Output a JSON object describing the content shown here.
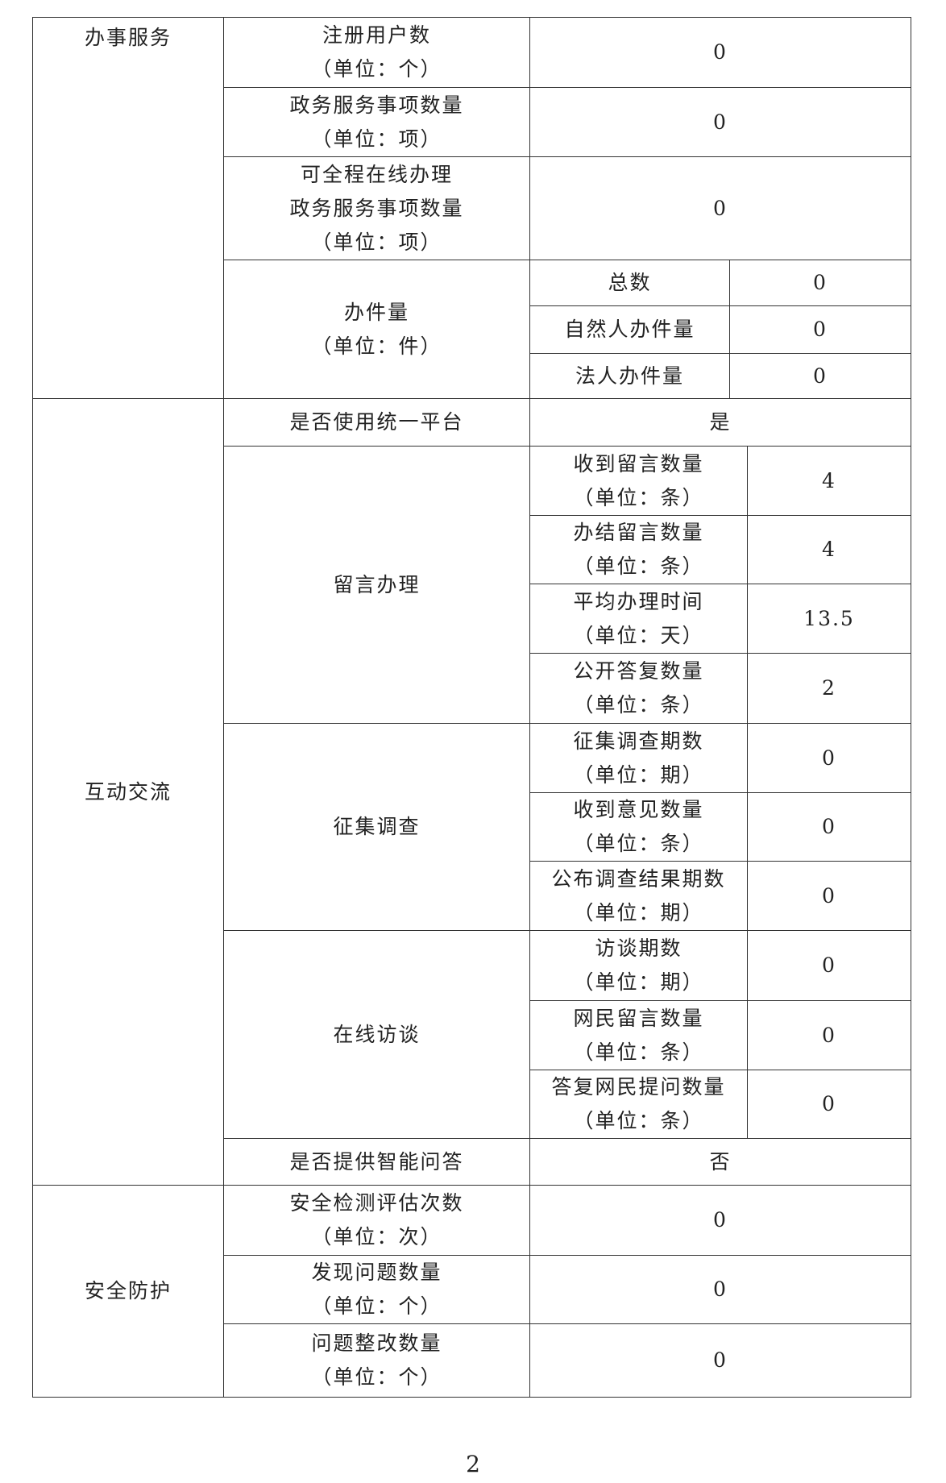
{
  "sections": {
    "service": {
      "label": "办事服务",
      "rows": [
        {
          "lines": [
            "注册用户数",
            "（单位：个）"
          ],
          "value": "0"
        },
        {
          "lines": [
            "政务服务事项数量",
            "（单位：项）"
          ],
          "value": "0"
        },
        {
          "lines": [
            "可全程在线办理",
            "政务服务事项数量",
            "（单位：项）"
          ],
          "value": "0"
        }
      ],
      "cases": {
        "lines": [
          "办件量",
          "（单位：件）"
        ],
        "items": [
          {
            "label": "总数",
            "value": "0"
          },
          {
            "label": "自然人办件量",
            "value": "0"
          },
          {
            "label": "法人办件量",
            "value": "0"
          }
        ]
      }
    },
    "interaction": {
      "label": "互动交流",
      "unified": {
        "label": "是否使用统一平台",
        "value": "是"
      },
      "messages": {
        "label": "留言办理",
        "items": [
          {
            "lines": [
              "收到留言数量",
              "（单位：条）"
            ],
            "value": "4"
          },
          {
            "lines": [
              "办结留言数量",
              "（单位：条）"
            ],
            "value": "4"
          },
          {
            "lines": [
              "平均办理时间",
              "（单位：天）"
            ],
            "value": "13.5"
          },
          {
            "lines": [
              "公开答复数量",
              "（单位：条）"
            ],
            "value": "2"
          }
        ]
      },
      "survey": {
        "label": "征集调查",
        "items": [
          {
            "lines": [
              "征集调查期数",
              "（单位：期）"
            ],
            "value": "0"
          },
          {
            "lines": [
              "收到意见数量",
              "（单位：条）"
            ],
            "value": "0"
          },
          {
            "lines": [
              "公布调查结果期数",
              "（单位：期）"
            ],
            "value": "0"
          }
        ]
      },
      "interview": {
        "label": "在线访谈",
        "items": [
          {
            "lines": [
              "访谈期数",
              "（单位：期）"
            ],
            "value": "0"
          },
          {
            "lines": [
              "网民留言数量",
              "（单位：条）"
            ],
            "value": "0"
          },
          {
            "lines": [
              "答复网民提问数量",
              "（单位：条）"
            ],
            "value": "0"
          }
        ]
      },
      "smart_qa": {
        "label": "是否提供智能问答",
        "value": "否"
      }
    },
    "security": {
      "label": "安全防护",
      "rows": [
        {
          "lines": [
            "安全检测评估次数",
            "（单位：次）"
          ],
          "value": "0"
        },
        {
          "lines": [
            "发现问题数量",
            "（单位：个）"
          ],
          "value": "0"
        },
        {
          "lines": [
            "问题整改数量",
            "（单位：个）"
          ],
          "value": "0"
        }
      ]
    }
  },
  "page_number": "2"
}
